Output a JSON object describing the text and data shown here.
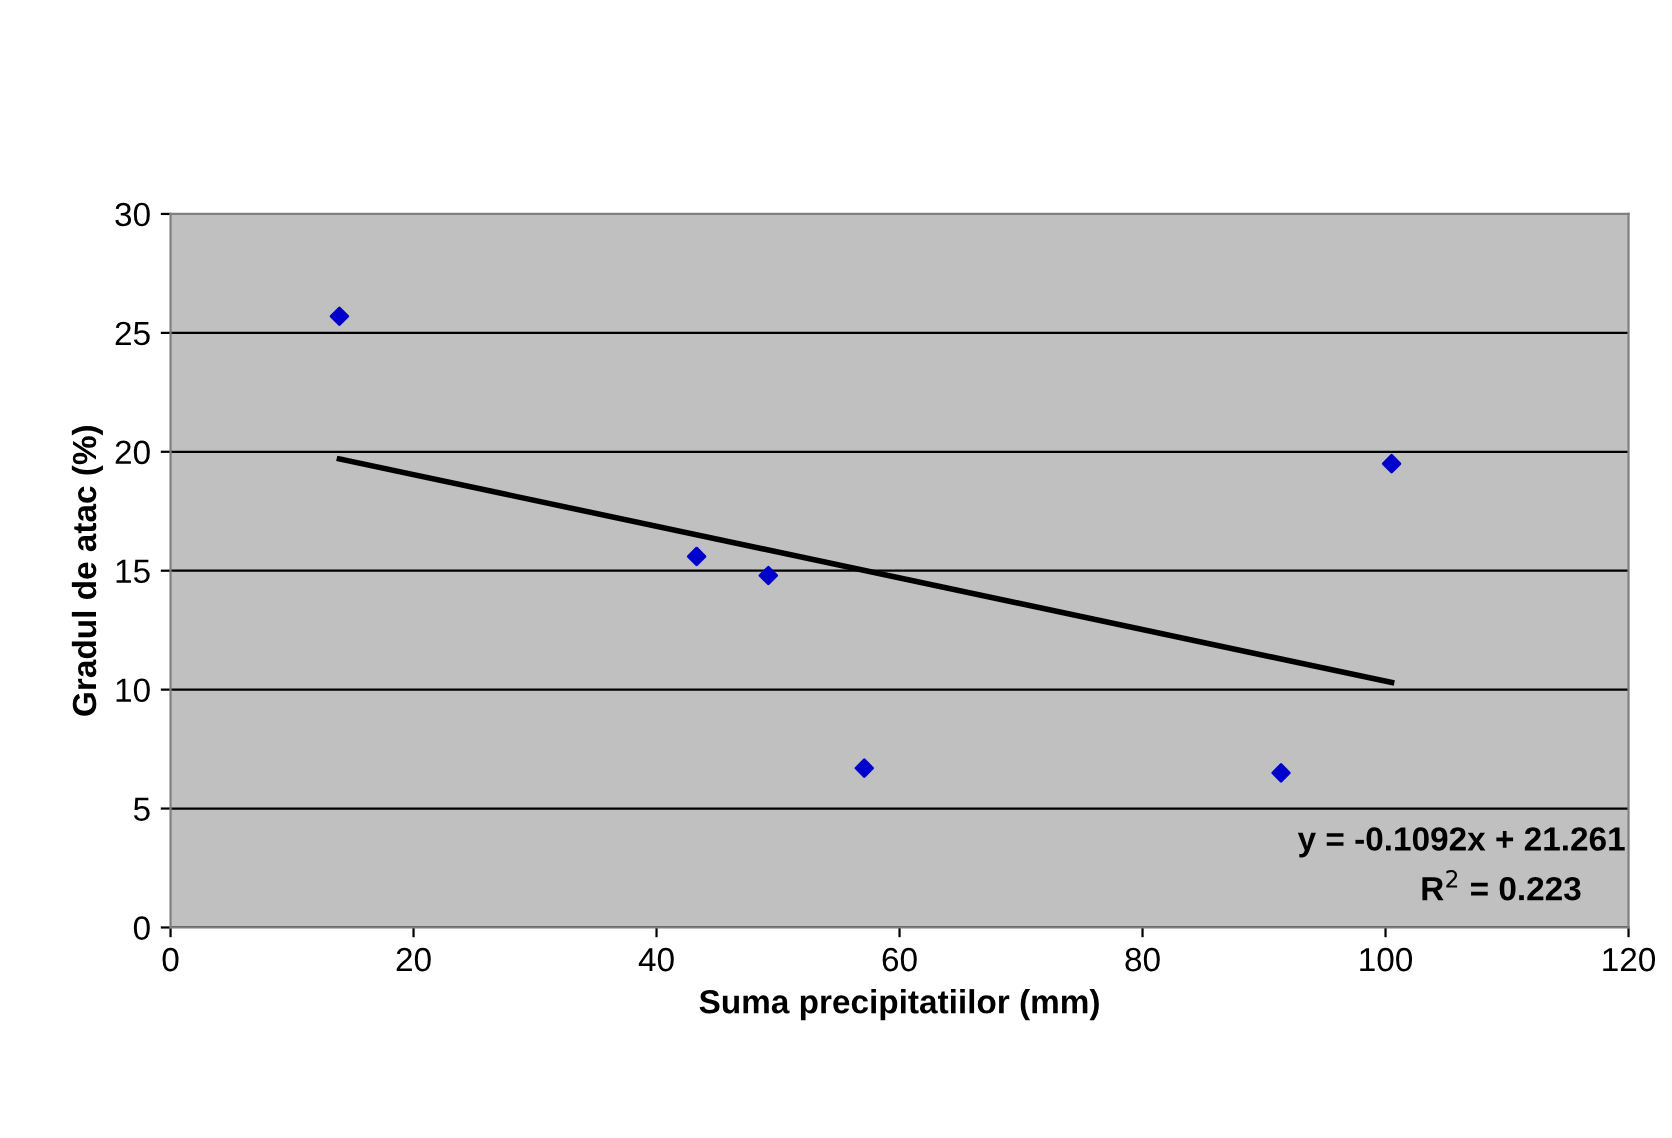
{
  "chart_data": {
    "type": "scatter",
    "xlabel": "Suma precipitatiilor (mm)",
    "ylabel": "Gradul de atac (%)",
    "series": [
      {
        "color": "#0000cc",
        "x": [
          13.9,
          43.3,
          49.2,
          57.1,
          91.4,
          100.5
        ],
        "values": [
          25.7,
          15.6,
          14.8,
          6.7,
          6.5,
          19.5
        ],
        "marker": "diamond"
      },
      {
        "type": "line",
        "color": "#000000",
        "x": [
          13.9,
          100.5
        ],
        "values": [
          19.7,
          10.3
        ],
        "line_style": "solid"
      }
    ],
    "annotations": [
      "y = -0.1092x + 21.261",
      "R$^{2}$ = 0.223"
    ],
    "xlim": [
      0,
      120
    ],
    "xticks": [
      0,
      20,
      40,
      60,
      80,
      100,
      120
    ],
    "ylim": [
      0,
      30
    ],
    "yticks": [
      0,
      5,
      10,
      15,
      20,
      25,
      30
    ],
    "grid": "y",
    "legend": false
  }
}
